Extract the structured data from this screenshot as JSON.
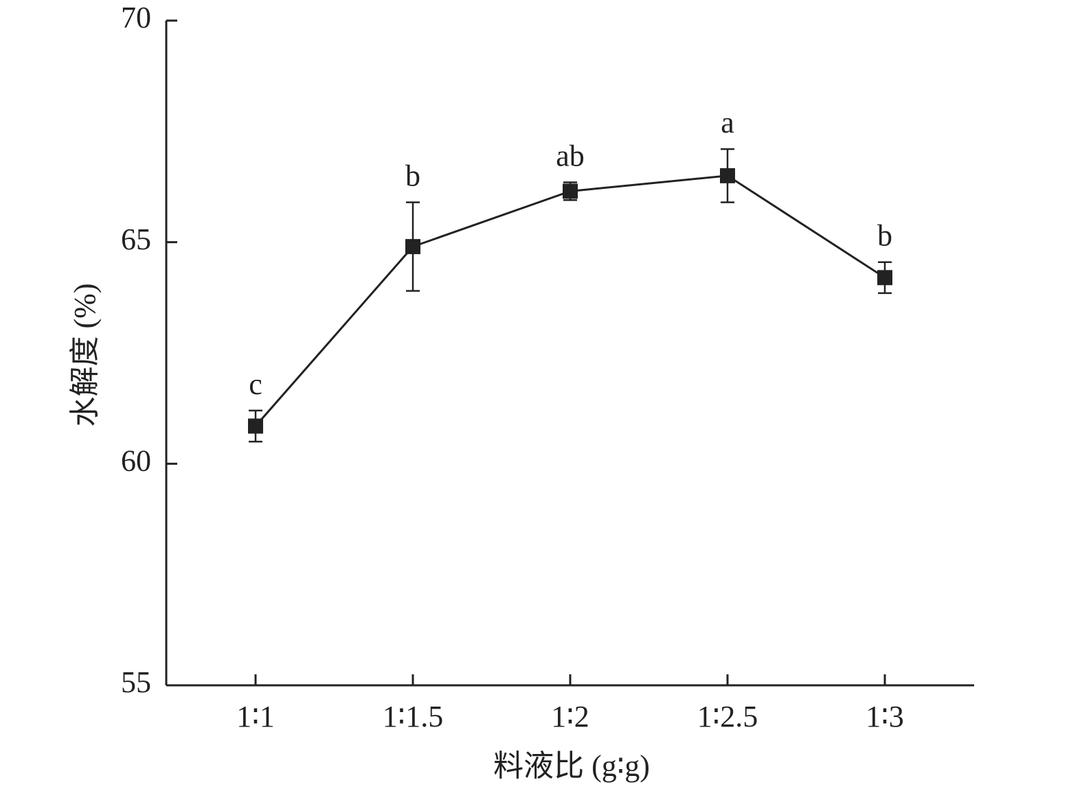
{
  "chart_data": {
    "type": "line",
    "categories": [
      "1∶1",
      "1∶1.5",
      "1∶2",
      "1∶2.5",
      "1∶3"
    ],
    "series": [
      {
        "values": [
          60.85,
          64.9,
          66.15,
          66.5,
          64.2
        ],
        "error": [
          0.35,
          1.0,
          0.2,
          0.6,
          0.35
        ],
        "labels": [
          "c",
          "b",
          "ab",
          "a",
          "b"
        ]
      }
    ],
    "xlabel": "料液比 (g∶g)",
    "ylabel": "水解度 (%)",
    "ylim": [
      55,
      70
    ],
    "yticks": [
      55,
      60,
      65,
      70
    ],
    "grid": false,
    "colors": {
      "ink": "#222222",
      "background": "#ffffff"
    }
  }
}
